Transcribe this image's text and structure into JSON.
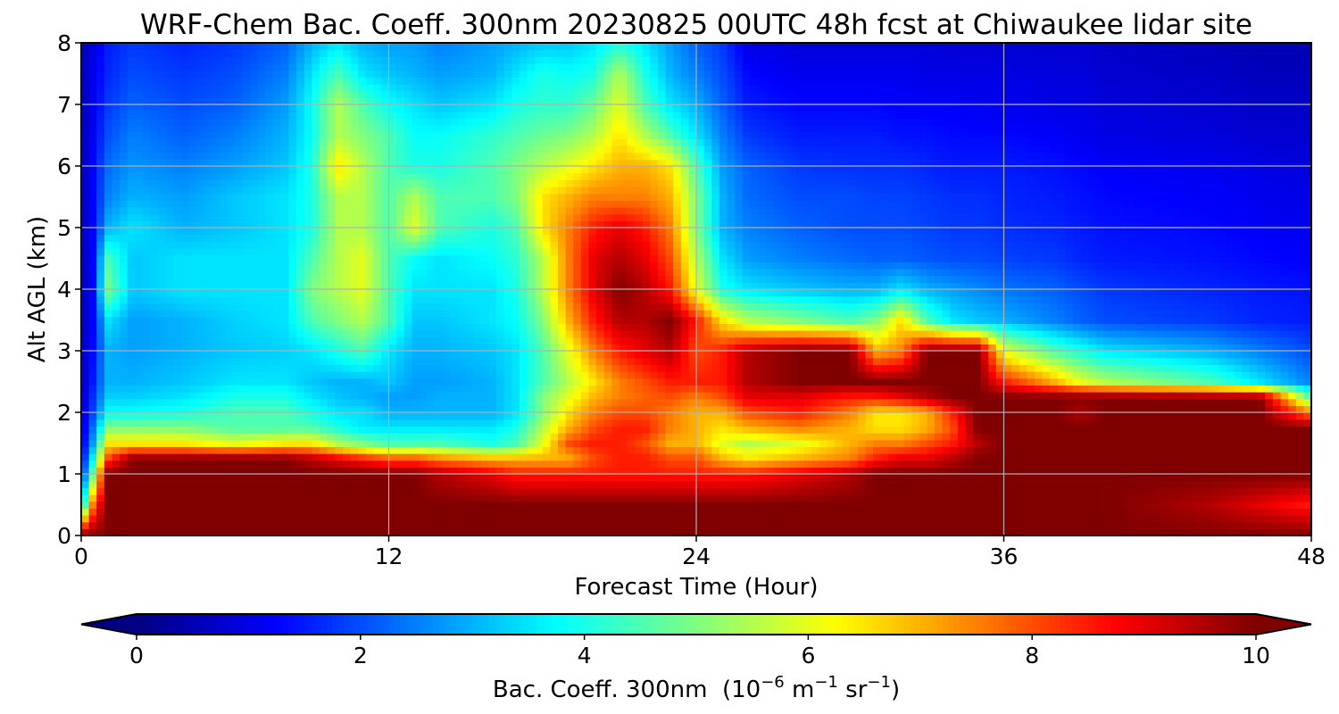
{
  "chart_data": {
    "type": "heatmap",
    "title": "WRF-Chem Bac. Coeff. 300nm  20230825 00UTC 48h fcst at Chiwaukee lidar site",
    "xlabel": "Forecast Time (Hour)",
    "ylabel": "Alt AGL (km)",
    "xlim": [
      0,
      48
    ],
    "ylim": [
      0,
      8
    ],
    "xticks": [
      0,
      12,
      24,
      36,
      48
    ],
    "yticks": [
      0,
      1,
      2,
      3,
      4,
      5,
      6,
      7,
      8
    ],
    "grid": true,
    "colormap": "jet",
    "colorbar": {
      "orientation": "horizontal",
      "placement": "bottom",
      "range": [
        0,
        10
      ],
      "ticks": [
        0,
        2,
        4,
        6,
        8,
        10
      ],
      "extend": "both",
      "label_main": "Bac. Coeff. 300nm",
      "label_unit_prefix": "(10",
      "label_exp1": "−6",
      "label_mid": " m",
      "label_exp2": "−1",
      "label_mid2": " sr",
      "label_exp3": "−1",
      "label_suffix": ")"
    },
    "hours": [
      0,
      0.5,
      1,
      2,
      4,
      6,
      8,
      9,
      10,
      11,
      12,
      13,
      14,
      16,
      17,
      18,
      19,
      20,
      21,
      22,
      23,
      24,
      25,
      26,
      28,
      30,
      31,
      32,
      33,
      34,
      35,
      36,
      38,
      39,
      40,
      44,
      46,
      48
    ],
    "altitudes_km": [
      0,
      0.5,
      1,
      1.25,
      1.5,
      1.75,
      2,
      2.25,
      2.5,
      3,
      3.5,
      4,
      4.5,
      5,
      5.5,
      6,
      6.5,
      7,
      7.5,
      8
    ],
    "values": [
      [
        10,
        10,
        10,
        10,
        10,
        10,
        10,
        10,
        10,
        10,
        10,
        10,
        10,
        10,
        10,
        10,
        10,
        10,
        10,
        10,
        10,
        10,
        10,
        10,
        10,
        10,
        10,
        10,
        10,
        10,
        10,
        10,
        10,
        10,
        10,
        10,
        10,
        10
      ],
      [
        3,
        8,
        10,
        10,
        10,
        10,
        10,
        10,
        10,
        10,
        10,
        10,
        10,
        10,
        10,
        10,
        10,
        10,
        10,
        10,
        10,
        10,
        10,
        10,
        10,
        10,
        10,
        10,
        10,
        10,
        10,
        10,
        10,
        10,
        10,
        9.5,
        9,
        8.5
      ],
      [
        1.5,
        5,
        10,
        10,
        10,
        10,
        10,
        10,
        10,
        10,
        10,
        10,
        9.5,
        9,
        8.5,
        8.5,
        8.5,
        8.5,
        8.5,
        8.5,
        8.5,
        8.5,
        8.5,
        8.5,
        9,
        9.5,
        10,
        10,
        10,
        10,
        10,
        10,
        10,
        10,
        10,
        10,
        10,
        10
      ],
      [
        1,
        4,
        8,
        10,
        10,
        10,
        10,
        9.5,
        9,
        8.5,
        8,
        8,
        7.5,
        7,
        7,
        7,
        7,
        8,
        8.5,
        8.5,
        8,
        8,
        7,
        6.5,
        7,
        7.5,
        8.5,
        9,
        9,
        9.5,
        10,
        10,
        10,
        10,
        10,
        10,
        10,
        10
      ],
      [
        0.8,
        3,
        6.5,
        6.5,
        6.5,
        6,
        6.5,
        6.5,
        5.5,
        5,
        4.5,
        4.5,
        4.5,
        4,
        4.5,
        6,
        8,
        8.5,
        8.5,
        8,
        7,
        7,
        6,
        5.5,
        6,
        7,
        7.5,
        7.5,
        8,
        8.5,
        9.5,
        10,
        10,
        10,
        10,
        10,
        10,
        10
      ],
      [
        0.7,
        2.5,
        5,
        5,
        5,
        4.5,
        4.5,
        4.5,
        4,
        3.5,
        3.5,
        3.5,
        3.5,
        3.5,
        4,
        5.5,
        7,
        8,
        8.5,
        8.5,
        7.5,
        7,
        6.5,
        7,
        7.5,
        7,
        6.5,
        6.5,
        7,
        8,
        10,
        10,
        10,
        10,
        10,
        10,
        10,
        10
      ],
      [
        0.6,
        2,
        3.8,
        3.8,
        4,
        4.5,
        4.5,
        4,
        3.5,
        3.5,
        3,
        3,
        3,
        3,
        3.5,
        5,
        6.5,
        7.5,
        8,
        8,
        7.5,
        7,
        7,
        8,
        8.5,
        7.5,
        6.5,
        6.5,
        7,
        8.5,
        10,
        10,
        10,
        9.5,
        10,
        10,
        10,
        7.5
      ],
      [
        0.6,
        1.8,
        3.3,
        3.3,
        3.5,
        4,
        4,
        3.5,
        3.2,
        3,
        2.8,
        2.8,
        3,
        3,
        3.5,
        5,
        6,
        7,
        7.5,
        7.8,
        8,
        7.5,
        8,
        9,
        9,
        8.5,
        8.5,
        9,
        9.5,
        10,
        10,
        10,
        10,
        10,
        10,
        10,
        10,
        4.5
      ],
      [
        0.5,
        1.6,
        3,
        3,
        3.2,
        3.5,
        3.5,
        3.2,
        3,
        3,
        3.2,
        2.8,
        2.8,
        3,
        3.5,
        4.5,
        5.5,
        6.5,
        7.5,
        8,
        8.5,
        8.5,
        8.5,
        9.5,
        10,
        10,
        10,
        10,
        10,
        10,
        10,
        8.5,
        7,
        6,
        5.5,
        4.5,
        3.5,
        2.5
      ],
      [
        0.5,
        1.4,
        3,
        2.8,
        3,
        3.2,
        3.3,
        3.5,
        4,
        4.5,
        3.5,
        3,
        3,
        3.2,
        3.5,
        4.5,
        6,
        7.5,
        8.5,
        9,
        9.5,
        8,
        8.5,
        9.5,
        10,
        10,
        7,
        7.5,
        10,
        10,
        10,
        6,
        4.5,
        4,
        3.5,
        3,
        2.5,
        2
      ],
      [
        0.5,
        1.3,
        3.5,
        2.8,
        3,
        3.3,
        3.5,
        4.5,
        5,
        5.5,
        4.5,
        3.2,
        3.2,
        3.5,
        3.8,
        5,
        7,
        8.5,
        9.5,
        9.5,
        10,
        8.5,
        6.5,
        5.5,
        5,
        4.5,
        5,
        6.5,
        4.5,
        3.5,
        3.2,
        3,
        2.5,
        2.2,
        2,
        1.8,
        1.6,
        1.5
      ],
      [
        0.5,
        1.3,
        5,
        3.2,
        3.5,
        3.5,
        3.5,
        5,
        5.5,
        6,
        4.5,
        3.5,
        3.5,
        3.5,
        4,
        5.5,
        7.5,
        9,
        10,
        9.5,
        8.5,
        6,
        4,
        3.5,
        3.2,
        3,
        3,
        3.5,
        3,
        2.8,
        2.6,
        2.4,
        2.2,
        2,
        1.8,
        1.6,
        1.5,
        1.4
      ],
      [
        0.5,
        1.3,
        4.5,
        3.2,
        3.5,
        3.5,
        3.5,
        4.5,
        5.5,
        6,
        4.5,
        3.8,
        3.5,
        3.8,
        4.2,
        5.5,
        7.5,
        9,
        9.5,
        9,
        8,
        5.5,
        3.5,
        2.8,
        2.5,
        2.3,
        2.2,
        2.2,
        2.1,
        2,
        2,
        1.9,
        1.8,
        1.6,
        1.5,
        1.4,
        1.3,
        1.2
      ],
      [
        0.5,
        1.3,
        3,
        3.5,
        3,
        3.2,
        3.5,
        4,
        5.5,
        5.5,
        4.5,
        6,
        4.5,
        4,
        4.5,
        6.5,
        7.5,
        8.5,
        9,
        8.5,
        7.5,
        5,
        3,
        2.5,
        2.2,
        2,
        2,
        2,
        1.9,
        1.8,
        1.8,
        1.7,
        1.6,
        1.5,
        1.4,
        1.3,
        1.2,
        1.1
      ],
      [
        0.5,
        1.3,
        2.5,
        3,
        2.8,
        3.2,
        3.5,
        4,
        5.5,
        5.5,
        4.5,
        5.5,
        4.5,
        4.5,
        5,
        6.5,
        7,
        7.5,
        7.5,
        7.5,
        7,
        5,
        3,
        2.3,
        2,
        2,
        1.9,
        1.9,
        1.8,
        1.7,
        1.7,
        1.6,
        1.5,
        1.4,
        1.3,
        1.2,
        1.1,
        1
      ],
      [
        0.5,
        1.3,
        2.3,
        2.7,
        2.5,
        2.8,
        3.2,
        4,
        6.5,
        5.5,
        4.5,
        4,
        4,
        4.5,
        5,
        5.5,
        6,
        6.5,
        7,
        7,
        6.5,
        4.5,
        2.8,
        2.2,
        1.8,
        1.7,
        1.7,
        1.7,
        1.6,
        1.5,
        1.5,
        1.5,
        1.4,
        1.3,
        1.2,
        1.1,
        1,
        0.9
      ],
      [
        0.5,
        1.2,
        2,
        2.5,
        2.2,
        2.5,
        3,
        3.8,
        5.5,
        5,
        4.5,
        3.8,
        3.8,
        4.2,
        4.5,
        4.8,
        5,
        5.5,
        6.5,
        5.5,
        4.5,
        3.5,
        2.5,
        1.8,
        1.5,
        1.5,
        1.5,
        1.4,
        1.4,
        1.3,
        1.3,
        1.3,
        1.2,
        1.1,
        1,
        0.9,
        0.8,
        0.8
      ],
      [
        0.5,
        1.1,
        1.8,
        2.2,
        2,
        2.2,
        2.8,
        3.8,
        5.5,
        4.5,
        3.8,
        3.5,
        3.2,
        3.5,
        4,
        4.2,
        4.2,
        4.8,
        6,
        4.5,
        3.5,
        3,
        2.2,
        1.5,
        1.3,
        1.3,
        1.3,
        1.2,
        1.2,
        1.2,
        1.1,
        1.1,
        1,
        1,
        0.9,
        0.8,
        0.7,
        0.7
      ],
      [
        0.5,
        1.1,
        1.6,
        2,
        1.8,
        2,
        2.5,
        3.5,
        4.5,
        3.5,
        3.2,
        3,
        2.8,
        3,
        3.5,
        4,
        3.8,
        4,
        5.5,
        4,
        3,
        2.5,
        2,
        1.3,
        1.1,
        1.1,
        1.1,
        1.1,
        1,
        1,
        1,
        1,
        0.9,
        0.9,
        0.8,
        0.7,
        0.6,
        0.6
      ],
      [
        0.5,
        1,
        1.5,
        1.8,
        1.6,
        1.8,
        2.2,
        3,
        3.5,
        3,
        2.8,
        2.8,
        2.5,
        2.8,
        3,
        3.2,
        3.2,
        3.5,
        4,
        3.5,
        2.8,
        2.2,
        1.8,
        1,
        0.9,
        0.9,
        0.9,
        0.9,
        0.9,
        0.8,
        0.8,
        0.8,
        0.8,
        0.8,
        0.7,
        0.6,
        0.5,
        0.5
      ]
    ]
  }
}
